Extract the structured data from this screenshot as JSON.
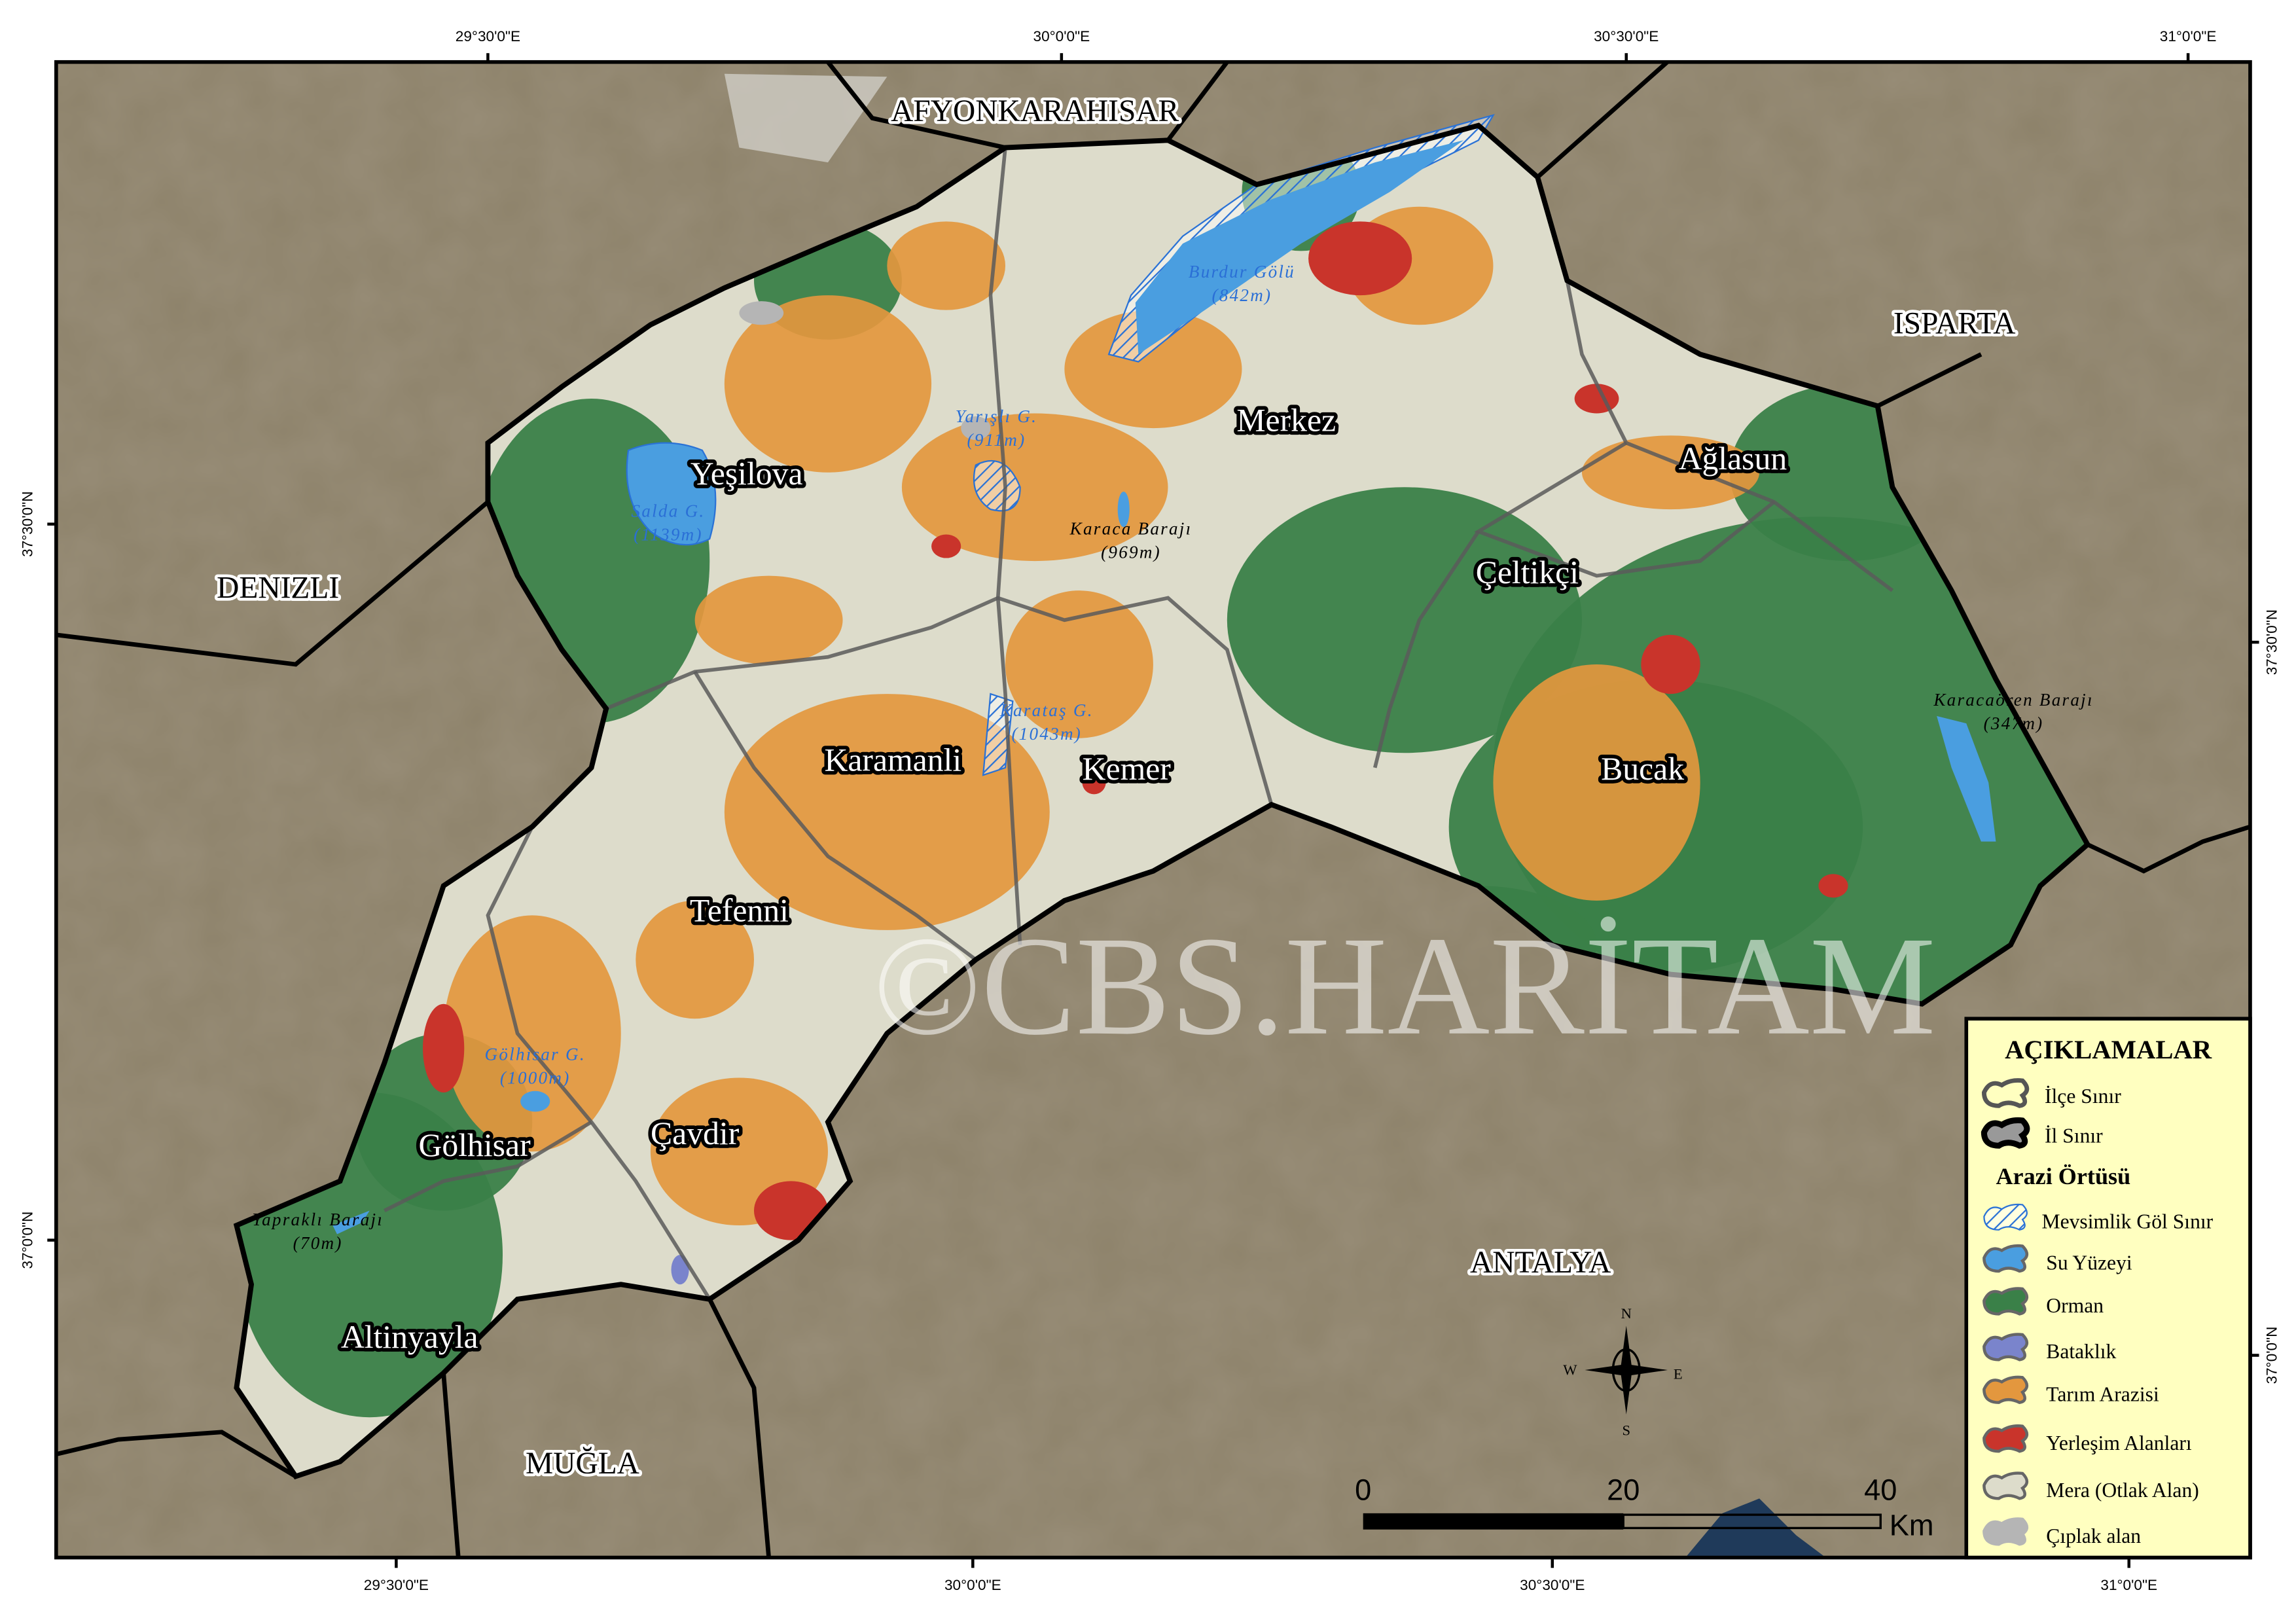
{
  "provinces": [
    "AFYONKARAHISAR",
    "ISPARTA",
    "DENIZLI",
    "ANTALYA",
    "MUĞLA"
  ],
  "districts": [
    "Yeşilova",
    "Merkez",
    "Ağlasun",
    "Çeltikçi",
    "Karamanli",
    "Kemer",
    "Bucak",
    "Tefenni",
    "Gölhisar",
    "Çavdir",
    "Altinyayla"
  ],
  "lakes": [
    {
      "name": "Burdur Gölü",
      "elev": "(842m)"
    },
    {
      "name": "Yarışlı G.",
      "elev": "(911m)"
    },
    {
      "name": "Salda G.",
      "elev": "(1139m)"
    },
    {
      "name": "Karataş G.",
      "elev": "(1043m)"
    },
    {
      "name": "Gölhisar G.",
      "elev": "(1000m)"
    }
  ],
  "dams": [
    {
      "name": "Karaca Barajı",
      "elev": "(969m)"
    },
    {
      "name": "Karacaören Barajı",
      "elev": "(347m)"
    },
    {
      "name": "Yapraklı Barajı",
      "elev": "(70m)"
    }
  ],
  "graticule": {
    "top": [
      "29°30'0\"E",
      "30°0'0\"E",
      "30°30'0\"E",
      "31°0'0\"E"
    ],
    "bottom": [
      "29°30'0\"E",
      "30°0'0\"E",
      "30°30'0\"E",
      "31°0'0\"E"
    ],
    "left": [
      "37°30'0\"N",
      "37°0'0\"N"
    ],
    "right": [
      "37°30'0\"N",
      "37°0'0\"N"
    ]
  },
  "legend": {
    "title": "AÇIKLAMALAR",
    "boundaries": [
      {
        "label": "İlçe Sınır",
        "fill": "none",
        "stroke": "#555555"
      },
      {
        "label": "İl Sınır",
        "fill": "#999999",
        "stroke": "#000000"
      }
    ],
    "landcover_title": "Arazi Örtüsü",
    "landcover": [
      {
        "label": "Mevsimlik Göl Sınır",
        "fill": "hatch",
        "stroke": "#2a72d6"
      },
      {
        "label": "Su Yüzeyi",
        "fill": "#4a9ee0",
        "stroke": "#666666"
      },
      {
        "label": "Orman",
        "fill": "#3a8048",
        "stroke": "#666666"
      },
      {
        "label": "Bataklık",
        "fill": "#7a84cc",
        "stroke": "#666666"
      },
      {
        "label": "Tarım Arazisi",
        "fill": "#e3973e",
        "stroke": "#666666"
      },
      {
        "label": "Yerleşim Alanları",
        "fill": "#c9342b",
        "stroke": "#666666"
      },
      {
        "label": "Mera (Otlak Alan)",
        "fill": "#dddccb",
        "stroke": "#666666"
      },
      {
        "label": "Çıplak alan",
        "fill": "#b5b5b5",
        "stroke": "#b5b5b5"
      }
    ],
    "background": "#ffffc0"
  },
  "scale_bar": {
    "ticks": [
      "0",
      "20",
      "40"
    ],
    "unit": "Km"
  },
  "compass": {
    "n": "N",
    "s": "S",
    "e": "E",
    "w": "W"
  },
  "watermark": "©CBS.HARİTAM"
}
